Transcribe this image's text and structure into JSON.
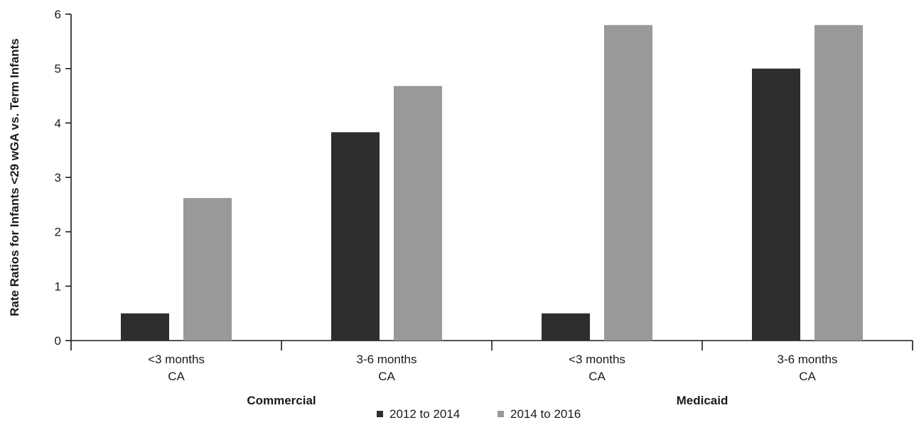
{
  "chart_data": {
    "type": "bar",
    "title": "",
    "ylabel": "Rate Ratios for Infants <29 wGA vs. Term Infants",
    "xlabel": "",
    "ylim": [
      0,
      6
    ],
    "yticks": [
      0,
      1,
      2,
      3,
      4,
      5,
      6
    ],
    "categories": [
      {
        "line1": "<3 months",
        "line2": "CA",
        "group": "Commercial"
      },
      {
        "line1": "3-6 months",
        "line2": "CA",
        "group": "Commercial"
      },
      {
        "line1": "<3 months",
        "line2": "CA",
        "group": "Medicaid"
      },
      {
        "line1": "3-6 months",
        "line2": "CA",
        "group": "Medicaid"
      }
    ],
    "groups": [
      "Commercial",
      "Medicaid"
    ],
    "series": [
      {
        "name": "2012 to 2014",
        "color": "#2e2e2e",
        "values": [
          0.5,
          3.83,
          0.5,
          5.0
        ]
      },
      {
        "name": "2014 to 2016",
        "color": "#999999",
        "values": [
          2.62,
          4.68,
          5.8,
          5.8
        ]
      }
    ],
    "legend_position": "bottom-center",
    "grid": false
  }
}
